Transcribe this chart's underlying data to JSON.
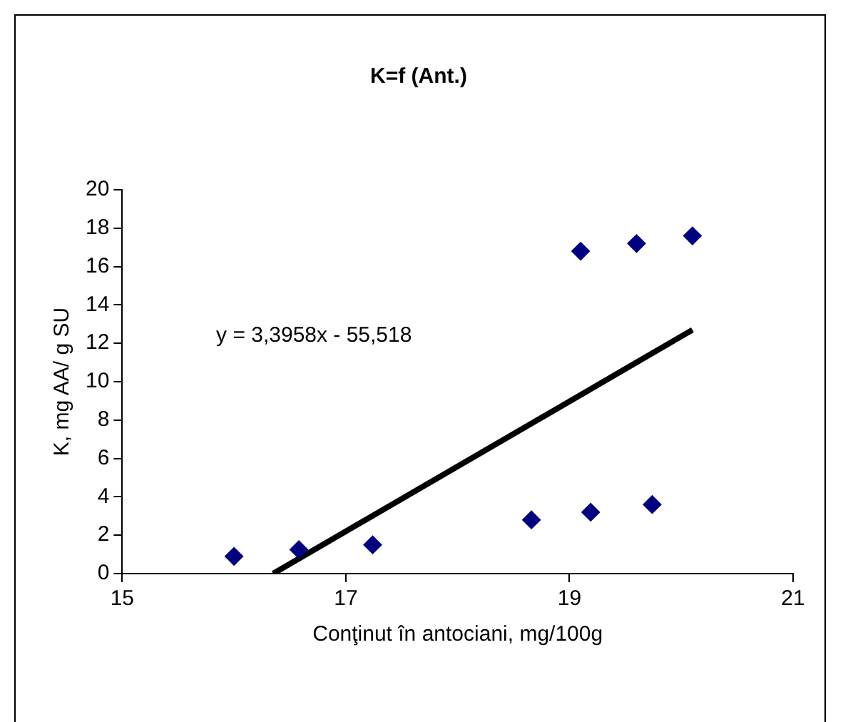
{
  "chart_data": {
    "type": "scatter",
    "title": "K=f (Ant.)",
    "xlabel": "Conţinut în antociani, mg/100g",
    "ylabel": "K, mg AA/ g SU",
    "series": [
      {
        "color": "#000080",
        "marker": "diamond",
        "x": [
          16.0,
          16.58,
          17.24,
          18.66,
          19.19,
          19.74,
          19.1,
          19.6,
          20.1
        ],
        "values": [
          0.9,
          1.25,
          1.5,
          2.8,
          3.2,
          3.6,
          16.8,
          17.2,
          17.6
        ]
      },
      {
        "type": "line",
        "color": "#000000",
        "marker": "none",
        "x": [
          16.35,
          20.1
        ],
        "values": [
          0,
          12.7
        ]
      }
    ],
    "annotations": [
      "y = 3,3958x - 55,518"
    ],
    "xlim": [
      15,
      21
    ],
    "xticks": [
      15,
      17,
      19,
      21
    ],
    "ylim": [
      0,
      20
    ],
    "yticks": [
      0,
      2,
      4,
      6,
      8,
      10,
      12,
      14,
      16,
      18,
      20
    ],
    "grid": false,
    "legend": false
  }
}
